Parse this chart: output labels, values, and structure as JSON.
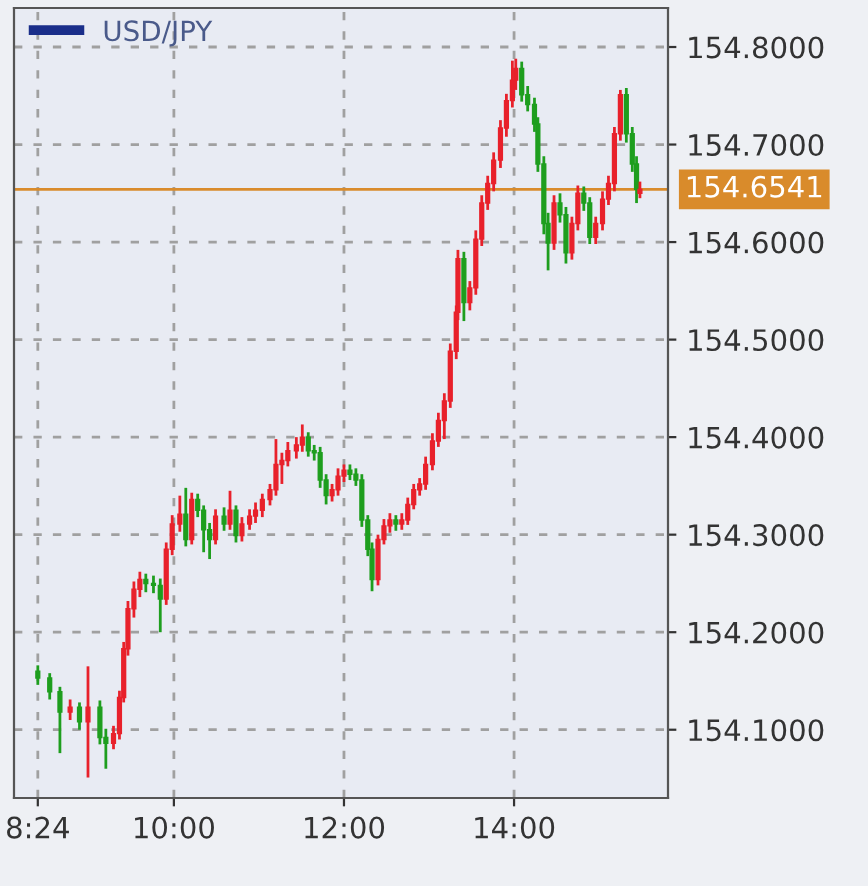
{
  "chart_data": {
    "type": "candlestick",
    "title": "USD/JPY",
    "grid": true,
    "x": [
      8.4,
      8.54,
      8.66,
      8.78,
      8.89,
      8.99,
      9.13,
      9.2,
      9.29,
      9.36,
      9.41,
      9.46,
      9.53,
      9.6,
      9.67,
      9.76,
      9.84,
      9.91,
      9.98,
      10.07,
      10.14,
      10.21,
      10.28,
      10.35,
      10.42,
      10.49,
      10.59,
      10.66,
      10.73,
      10.8,
      10.89,
      10.96,
      11.04,
      11.13,
      11.2,
      11.27,
      11.34,
      11.44,
      11.51,
      11.58,
      11.65,
      11.72,
      11.79,
      11.86,
      11.93,
      12.0,
      12.07,
      12.14,
      12.21,
      12.28,
      12.33,
      12.4,
      12.47,
      12.54,
      12.61,
      12.68,
      12.75,
      12.82,
      12.89,
      12.96,
      13.04,
      13.11,
      13.18,
      13.25,
      13.32,
      13.34,
      13.41,
      13.48,
      13.55,
      13.62,
      13.69,
      13.76,
      13.84,
      13.91,
      13.98,
      14.02,
      14.09,
      14.16,
      14.24,
      14.28,
      14.35,
      14.4,
      14.47,
      14.54,
      14.61,
      14.68,
      14.75,
      14.82,
      14.89,
      14.96,
      15.04,
      15.11,
      15.18,
      15.25,
      15.32,
      15.39,
      15.44,
      15.48
    ],
    "series": [
      {
        "ohlc": [
          [
            154.16,
            154.166,
            154.146,
            154.153
          ],
          [
            154.153,
            154.158,
            154.131,
            154.139
          ],
          [
            154.139,
            154.144,
            154.076,
            154.118
          ],
          [
            154.118,
            154.131,
            154.11,
            154.123
          ],
          [
            154.123,
            154.128,
            154.1,
            154.108
          ],
          [
            154.108,
            154.165,
            154.051,
            154.123
          ],
          [
            154.123,
            154.13,
            154.085,
            154.092
          ],
          [
            154.092,
            154.101,
            154.06,
            154.086
          ],
          [
            154.086,
            154.104,
            154.08,
            154.096
          ],
          [
            154.096,
            154.14,
            154.09,
            154.133
          ],
          [
            154.133,
            154.19,
            154.128,
            154.183
          ],
          [
            154.183,
            154.232,
            154.176,
            154.224
          ],
          [
            154.224,
            154.252,
            154.215,
            154.244
          ],
          [
            154.244,
            154.262,
            154.236,
            154.254
          ],
          [
            154.254,
            154.26,
            154.241,
            154.25
          ],
          [
            154.25,
            154.258,
            154.24,
            154.248
          ],
          [
            154.248,
            154.255,
            154.2,
            154.234
          ],
          [
            154.234,
            154.292,
            154.228,
            154.285
          ],
          [
            154.285,
            154.32,
            154.279,
            154.311
          ],
          [
            154.311,
            154.34,
            154.303,
            154.321
          ],
          [
            154.321,
            154.348,
            154.288,
            154.295
          ],
          [
            154.295,
            154.343,
            154.29,
            154.336
          ],
          [
            154.336,
            154.342,
            154.318,
            154.325
          ],
          [
            154.325,
            154.33,
            154.282,
            154.305
          ],
          [
            154.305,
            154.312,
            154.275,
            154.295
          ],
          [
            154.295,
            154.326,
            154.29,
            154.319
          ],
          [
            154.319,
            154.328,
            154.304,
            154.311
          ],
          [
            154.311,
            154.345,
            154.305,
            154.325
          ],
          [
            154.325,
            154.33,
            154.292,
            154.299
          ],
          [
            154.299,
            154.318,
            154.293,
            154.311
          ],
          [
            154.311,
            154.326,
            154.305,
            154.319
          ],
          [
            154.319,
            154.333,
            154.312,
            154.325
          ],
          [
            154.325,
            154.342,
            154.318,
            154.336
          ],
          [
            154.336,
            154.352,
            154.33,
            154.346
          ],
          [
            154.346,
            154.398,
            154.34,
            154.372
          ],
          [
            154.372,
            154.384,
            154.352,
            154.376
          ],
          [
            154.376,
            154.395,
            154.37,
            154.386
          ],
          [
            154.386,
            154.4,
            154.378,
            154.392
          ],
          [
            154.392,
            154.413,
            154.385,
            154.4
          ],
          [
            154.4,
            154.405,
            154.38,
            154.386
          ],
          [
            154.386,
            154.392,
            154.376,
            154.384
          ],
          [
            154.384,
            154.39,
            154.348,
            154.356
          ],
          [
            154.356,
            154.362,
            154.331,
            154.34
          ],
          [
            154.34,
            154.352,
            154.334,
            154.346
          ],
          [
            154.346,
            154.368,
            154.34,
            154.36
          ],
          [
            154.36,
            154.372,
            154.354,
            154.366
          ],
          [
            154.366,
            154.372,
            154.356,
            154.362
          ],
          [
            154.362,
            154.368,
            154.35,
            154.356
          ],
          [
            154.356,
            154.362,
            154.308,
            154.315
          ],
          [
            154.315,
            154.32,
            154.278,
            154.285
          ],
          [
            154.285,
            154.292,
            154.242,
            154.254
          ],
          [
            154.254,
            154.3,
            154.248,
            154.295
          ],
          [
            154.295,
            154.316,
            154.29,
            154.309
          ],
          [
            154.309,
            154.322,
            154.302,
            154.315
          ],
          [
            154.315,
            154.32,
            154.304,
            154.311
          ],
          [
            154.311,
            154.322,
            154.305,
            154.315
          ],
          [
            154.315,
            154.338,
            154.31,
            154.331
          ],
          [
            154.331,
            154.352,
            154.326,
            154.346
          ],
          [
            154.346,
            154.358,
            154.34,
            154.352
          ],
          [
            154.352,
            154.38,
            154.346,
            154.372
          ],
          [
            154.372,
            154.404,
            154.366,
            154.396
          ],
          [
            154.396,
            154.425,
            154.39,
            154.417
          ],
          [
            154.417,
            154.445,
            154.398,
            154.437
          ],
          [
            154.437,
            154.496,
            154.43,
            154.488
          ],
          [
            154.488,
            154.535,
            154.48,
            154.528
          ],
          [
            154.528,
            154.592,
            154.52,
            154.583
          ],
          [
            154.583,
            154.59,
            154.519,
            154.538
          ],
          [
            154.538,
            154.56,
            154.53,
            154.553
          ],
          [
            154.553,
            154.612,
            154.546,
            154.603
          ],
          [
            154.603,
            154.648,
            154.596,
            154.64
          ],
          [
            154.64,
            154.668,
            154.633,
            154.66
          ],
          [
            154.66,
            154.692,
            154.652,
            154.684
          ],
          [
            154.684,
            154.725,
            154.676,
            154.717
          ],
          [
            154.717,
            154.752,
            154.708,
            154.745
          ],
          [
            154.745,
            154.786,
            154.738,
            154.766
          ],
          [
            154.766,
            154.788,
            154.756,
            154.778
          ],
          [
            154.778,
            154.785,
            154.744,
            154.751
          ],
          [
            154.751,
            154.76,
            154.734,
            154.741
          ],
          [
            154.741,
            154.748,
            154.713,
            154.721
          ],
          [
            154.721,
            154.728,
            154.672,
            154.68
          ],
          [
            154.68,
            154.688,
            154.608,
            154.619
          ],
          [
            154.619,
            154.63,
            154.571,
            154.599
          ],
          [
            154.599,
            154.648,
            154.592,
            154.64
          ],
          [
            154.64,
            154.65,
            154.62,
            154.628
          ],
          [
            154.628,
            154.636,
            154.578,
            154.589
          ],
          [
            154.589,
            154.626,
            154.582,
            154.619
          ],
          [
            154.619,
            154.658,
            154.612,
            154.65
          ],
          [
            154.65,
            154.657,
            154.632,
            154.64
          ],
          [
            154.64,
            154.646,
            154.598,
            154.605
          ],
          [
            154.605,
            154.626,
            154.598,
            154.619
          ],
          [
            154.619,
            154.652,
            154.612,
            154.644
          ],
          [
            154.644,
            154.668,
            154.638,
            154.66
          ],
          [
            154.66,
            154.718,
            154.652,
            154.711
          ],
          [
            154.711,
            154.756,
            154.704,
            154.751
          ],
          [
            154.751,
            154.758,
            154.702,
            154.711
          ],
          [
            154.711,
            154.718,
            154.672,
            154.68
          ],
          [
            154.68,
            154.688,
            154.64,
            154.654
          ],
          [
            154.65,
            154.662,
            154.645,
            154.654
          ]
        ]
      }
    ],
    "colors": [
      "#1e9e1e",
      "#1e9e1e",
      "#1e9e1e",
      "#e8212b",
      "#1e9e1e",
      "#e8212b",
      "#1e9e1e",
      "#1e9e1e",
      "#e8212b",
      "#e8212b",
      "#e8212b",
      "#e8212b",
      "#e8212b",
      "#e8212b",
      "#1e9e1e",
      "#1e9e1e",
      "#1e9e1e",
      "#e8212b",
      "#e8212b",
      "#e8212b",
      "#1e9e1e",
      "#e8212b",
      "#1e9e1e",
      "#1e9e1e",
      "#1e9e1e",
      "#e8212b",
      "#1e9e1e",
      "#e8212b",
      "#1e9e1e",
      "#e8212b",
      "#e8212b",
      "#e8212b",
      "#e8212b",
      "#e8212b",
      "#e8212b",
      "#e8212b",
      "#e8212b",
      "#e8212b",
      "#e8212b",
      "#1e9e1e",
      "#1e9e1e",
      "#1e9e1e",
      "#1e9e1e",
      "#e8212b",
      "#e8212b",
      "#e8212b",
      "#1e9e1e",
      "#1e9e1e",
      "#1e9e1e",
      "#1e9e1e",
      "#1e9e1e",
      "#e8212b",
      "#e8212b",
      "#e8212b",
      "#1e9e1e",
      "#e8212b",
      "#e8212b",
      "#e8212b",
      "#e8212b",
      "#e8212b",
      "#e8212b",
      "#e8212b",
      "#e8212b",
      "#e8212b",
      "#e8212b",
      "#e8212b",
      "#1e9e1e",
      "#e8212b",
      "#e8212b",
      "#e8212b",
      "#e8212b",
      "#e8212b",
      "#e8212b",
      "#e8212b",
      "#e8212b",
      "#e8212b",
      "#1e9e1e",
      "#1e9e1e",
      "#1e9e1e",
      "#1e9e1e",
      "#1e9e1e",
      "#1e9e1e",
      "#e8212b",
      "#1e9e1e",
      "#1e9e1e",
      "#e8212b",
      "#e8212b",
      "#1e9e1e",
      "#1e9e1e",
      "#e8212b",
      "#e8212b",
      "#e8212b",
      "#e8212b",
      "#e8212b",
      "#1e9e1e",
      "#1e9e1e",
      "#1e9e1e",
      "#e8212b"
    ],
    "xlim": [
      8.12,
      15.81
    ],
    "xticks": [
      {
        "value": 8.4,
        "label": "8:24"
      },
      {
        "value": 10,
        "label": "10:00"
      },
      {
        "value": 12,
        "label": "12:00"
      },
      {
        "value": 14,
        "label": "14:00"
      }
    ],
    "ylim": [
      154.03,
      154.84
    ],
    "yticks": [
      {
        "value": 154.1,
        "label": "154.1000"
      },
      {
        "value": 154.2,
        "label": "154.2000"
      },
      {
        "value": 154.3,
        "label": "154.3000"
      },
      {
        "value": 154.4,
        "label": "154.4000"
      },
      {
        "value": 154.5,
        "label": "154.5000"
      },
      {
        "value": 154.6,
        "label": "154.6000"
      },
      {
        "value": 154.7,
        "label": "154.7000"
      },
      {
        "value": 154.8,
        "label": "154.8000"
      }
    ],
    "ref_lines": [
      {
        "axis": "y",
        "value": 154.6541,
        "label": "154.6541",
        "color": "#d98b2b"
      }
    ]
  }
}
